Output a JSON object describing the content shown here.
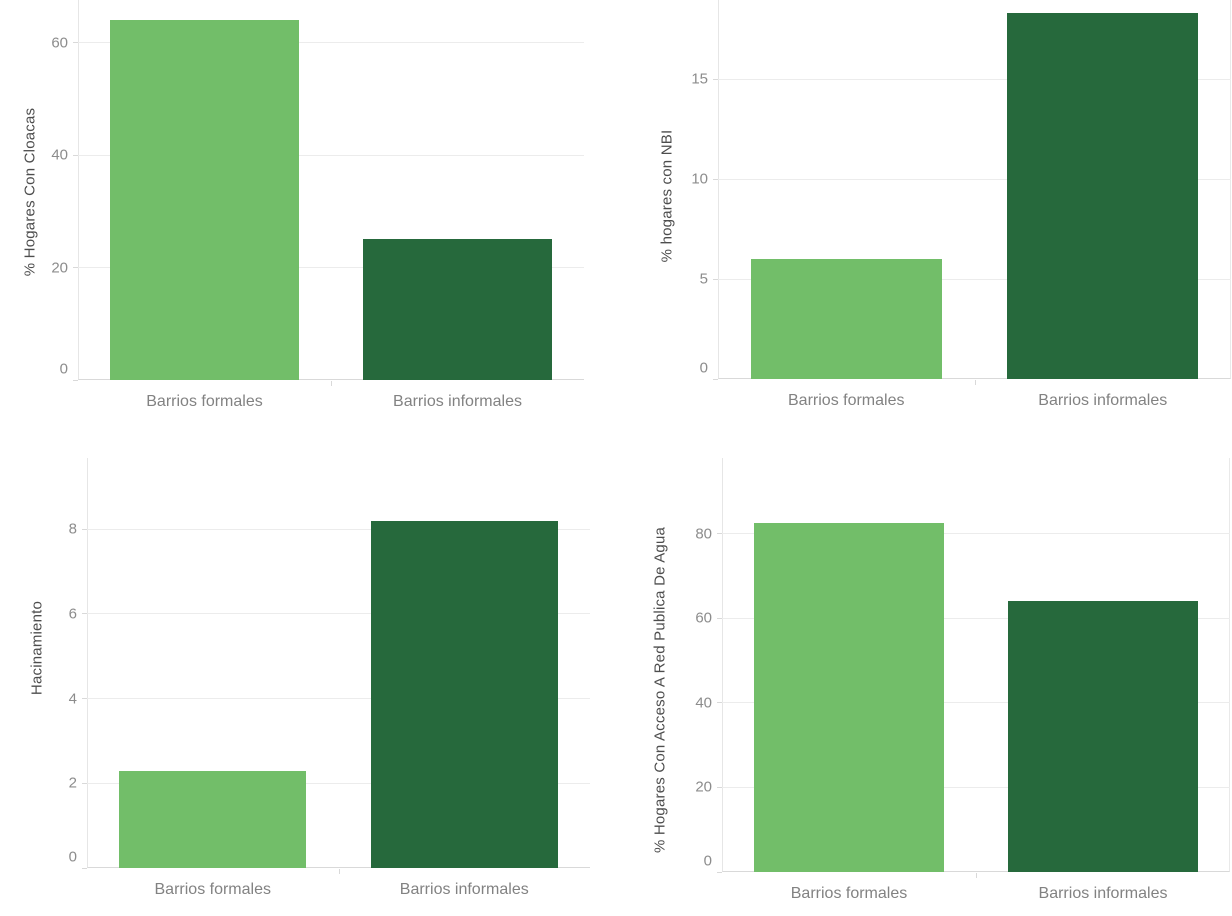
{
  "page": {
    "background": "#ffffff"
  },
  "palette": {
    "bar_formal": "#72be69",
    "bar_informal": "#26693c",
    "gridline": "#ececec",
    "axis_line": "#d9d9d9",
    "tick_label": "#8c8c8c",
    "category_label": "#828282",
    "axis_title": "#4d4d4d"
  },
  "chart_data": [
    {
      "id": "cloacas",
      "type": "bar",
      "title": "",
      "xlabel": "",
      "ylabel": "% Hogares Con Cloacas",
      "categories": [
        "Barrios formales",
        "Barrios informales"
      ],
      "values": [
        64,
        25
      ],
      "bar_colors": [
        "#72be69",
        "#26693c"
      ],
      "yticks": [
        0,
        20,
        40,
        60
      ],
      "ylim": [
        0,
        67.6
      ],
      "grid": "horizontal",
      "legend": "none"
    },
    {
      "id": "nbi",
      "type": "bar",
      "title": "",
      "xlabel": "",
      "ylabel": "% hogares con NBI",
      "categories": [
        "Barrios formales",
        "Barrios informales"
      ],
      "values": [
        6,
        18.3
      ],
      "bar_colors": [
        "#72be69",
        "#26693c"
      ],
      "yticks": [
        0,
        5,
        10,
        15
      ],
      "ylim": [
        0,
        18.95
      ],
      "grid": "horizontal",
      "legend": "none"
    },
    {
      "id": "hacinamiento",
      "type": "bar",
      "title": "",
      "xlabel": "",
      "ylabel": "Hacinamiento",
      "categories": [
        "Barrios formales",
        "Barrios informales"
      ],
      "values": [
        2.3,
        8.2
      ],
      "bar_colors": [
        "#72be69",
        "#26693c"
      ],
      "yticks": [
        0,
        2,
        4,
        6,
        8
      ],
      "ylim": [
        0,
        9.68
      ],
      "grid": "horizontal",
      "legend": "none"
    },
    {
      "id": "agua",
      "type": "bar",
      "title": "",
      "xlabel": "",
      "ylabel": "% Hogares Con Acceso A Red Publica De Agua",
      "categories": [
        "Barrios formales",
        "Barrios informales"
      ],
      "values": [
        82.5,
        64
      ],
      "bar_colors": [
        "#72be69",
        "#26693c"
      ],
      "yticks": [
        0,
        20,
        40,
        60,
        80
      ],
      "ylim": [
        0,
        97.9
      ],
      "grid": "horizontal",
      "legend": "none"
    }
  ]
}
